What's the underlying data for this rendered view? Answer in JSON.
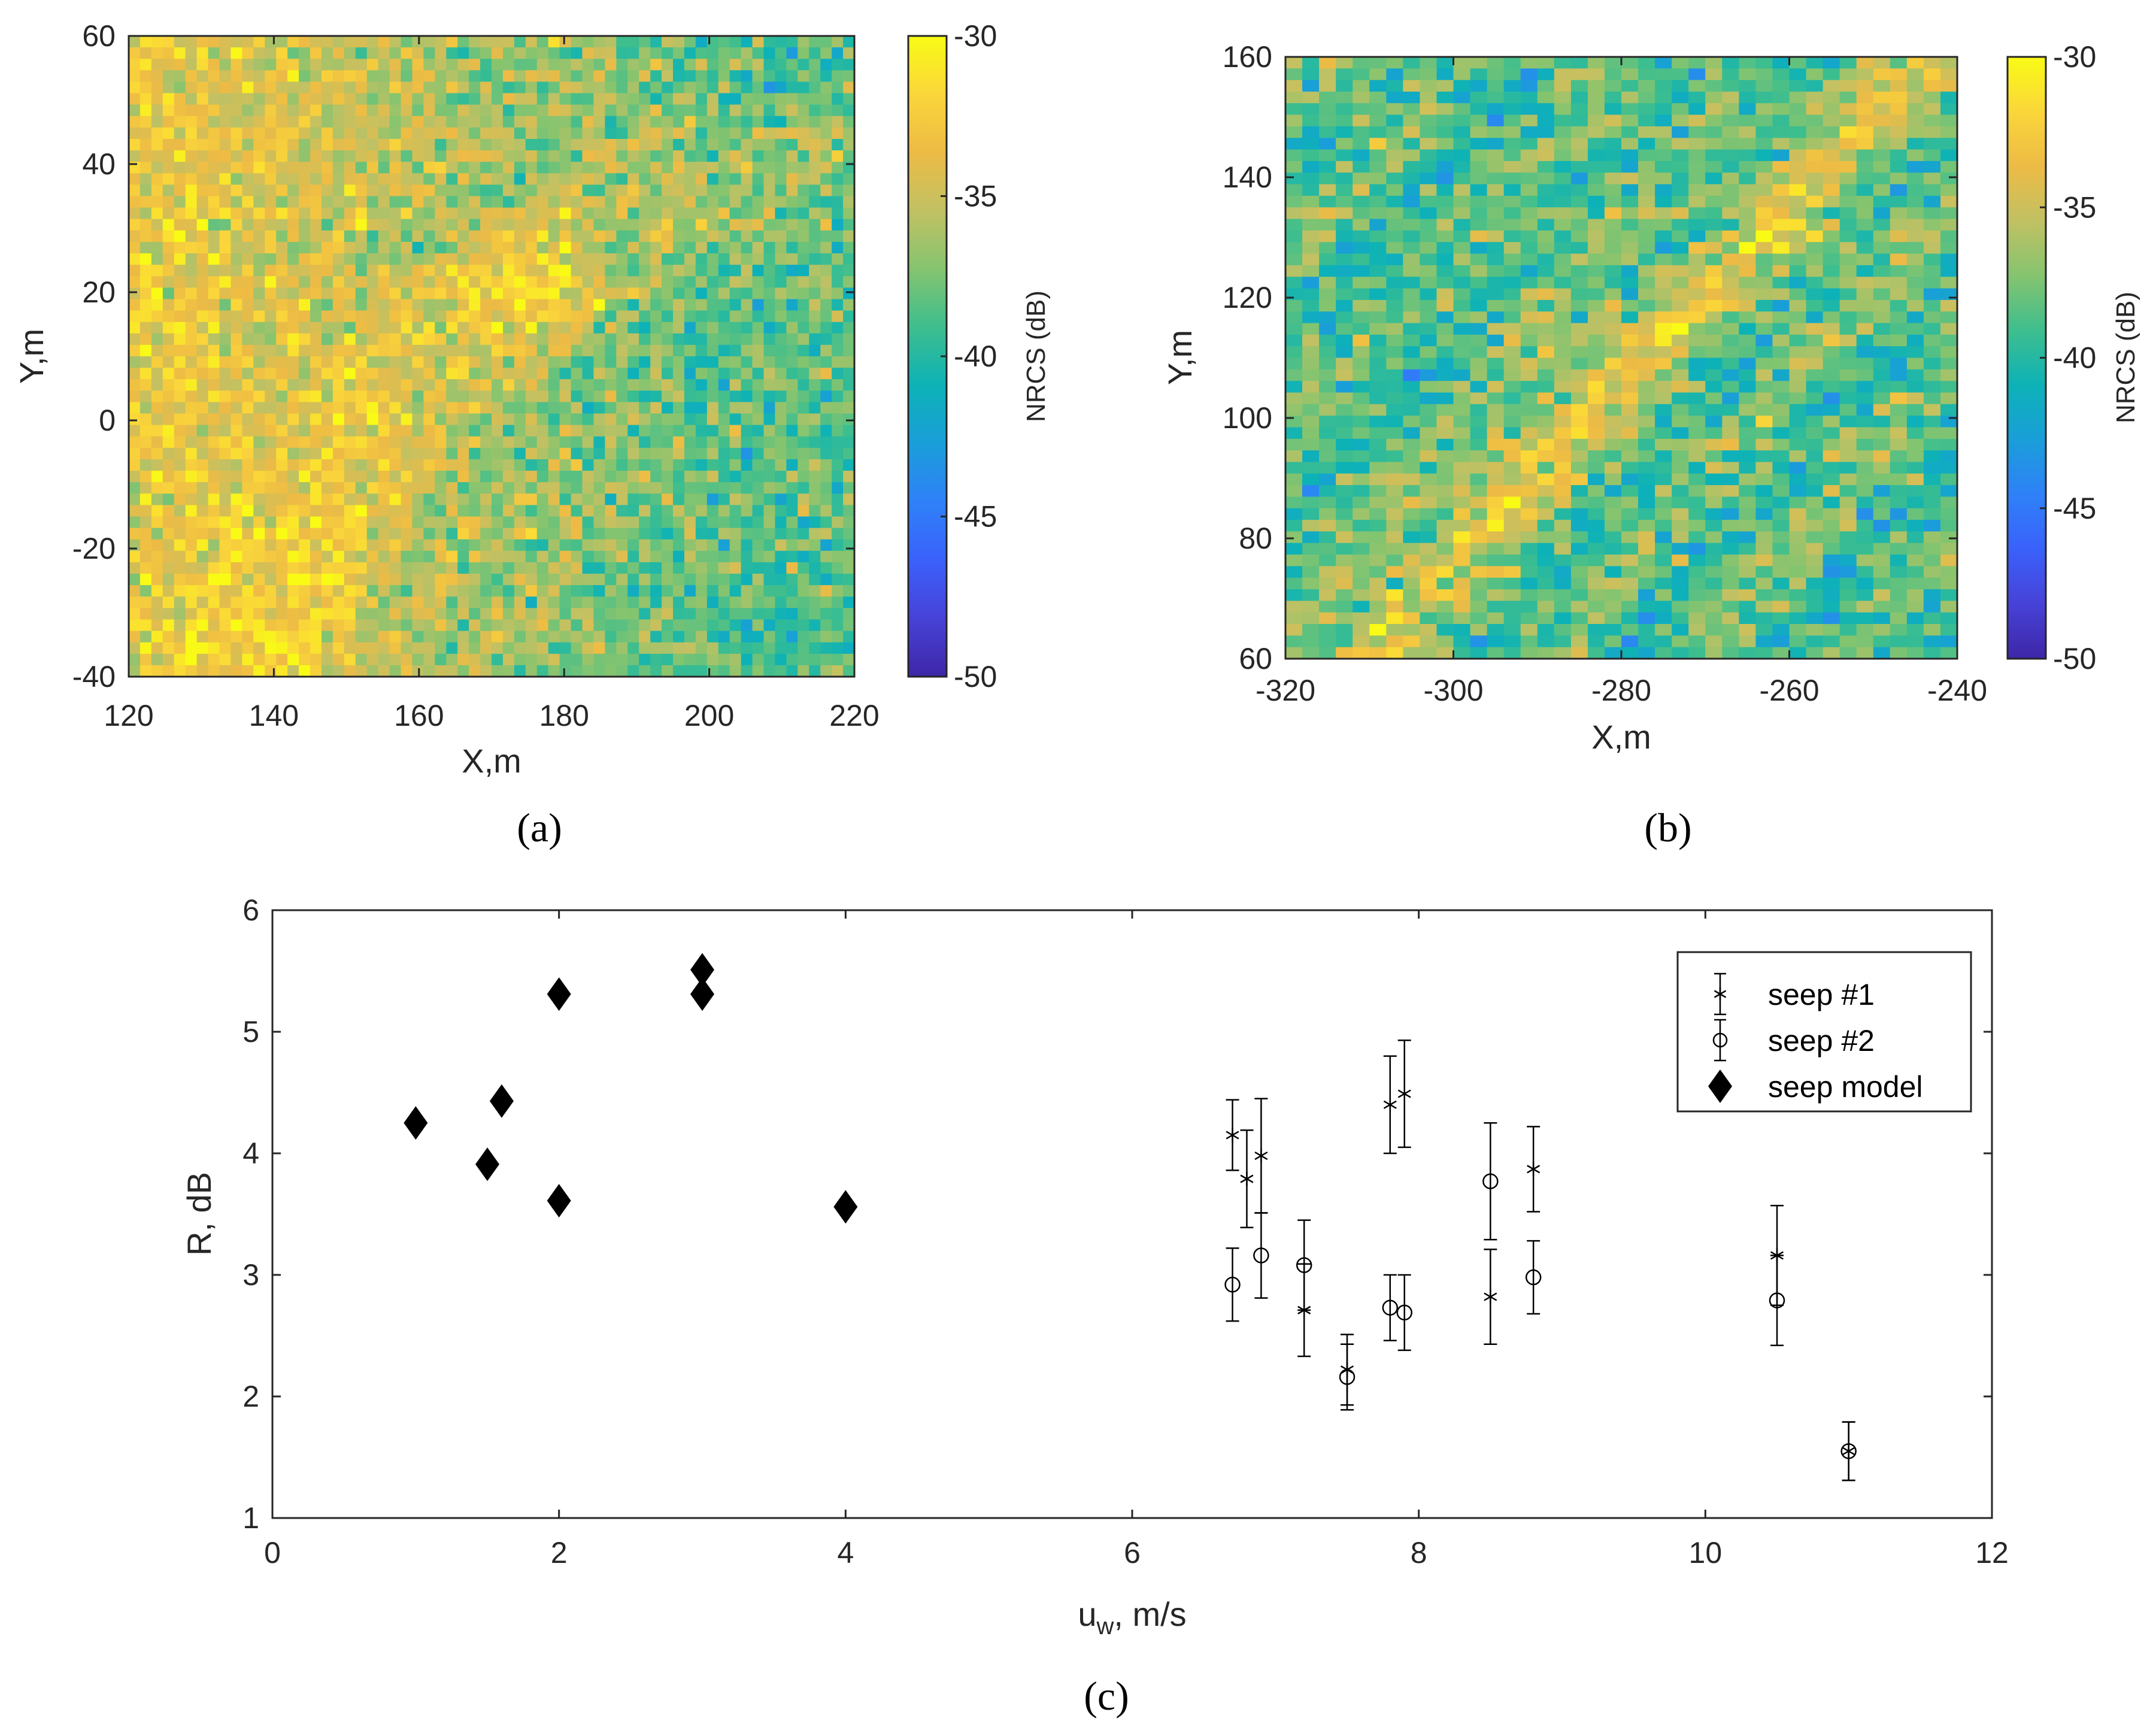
{
  "colors": {
    "cmap": [
      "#3e26a8",
      "#4742d7",
      "#3a61fb",
      "#2f81f8",
      "#1a9ed9",
      "#0db2b7",
      "#3ebe8e",
      "#85c46f",
      "#c1c163",
      "#edbb45",
      "#fad63a",
      "#f9fb15"
    ],
    "axis": "#262626",
    "marker": "#000000"
  },
  "panels": {
    "a": "(a)",
    "b": "(b)",
    "c": "(c)"
  },
  "chart_data": [
    {
      "id": "a",
      "type": "heatmap",
      "title": "",
      "xlabel": "X,m",
      "ylabel": "Y,m",
      "xlim": [
        120,
        220
      ],
      "ylim": [
        -40,
        60
      ],
      "xticks": [
        "120",
        "140",
        "160",
        "180",
        "200",
        "220"
      ],
      "yticks": [
        "60",
        "40",
        "20",
        "0",
        "-20",
        "-40"
      ],
      "colorbar": {
        "label": "NRCS (dB)",
        "range": [
          -50,
          -30
        ],
        "ticks": [
          "-30",
          "-35",
          "-40",
          "-45",
          "-50"
        ]
      },
      "pattern": {
        "grid": [
          64,
          56
        ],
        "base_left_dB": -33.5,
        "base_right_dB": -38.5,
        "noise_dB": 2.4,
        "hotspots": [
          {
            "x": 175,
            "y": 21,
            "r": 12,
            "dB": -31.0
          }
        ]
      }
    },
    {
      "id": "b",
      "type": "heatmap",
      "title": "",
      "xlabel": "X,m",
      "ylabel": "Y,m",
      "xlim": [
        -320,
        -240
      ],
      "ylim": [
        60,
        160
      ],
      "xticks": [
        "-320",
        "-300",
        "-280",
        "-260",
        "-240"
      ],
      "yticks": [
        "160",
        "140",
        "120",
        "100",
        "80",
        "60"
      ],
      "colorbar": {
        "label": "NRCS (dB)",
        "range": [
          -50,
          -30
        ],
        "ticks": [
          "-30",
          "-35",
          "-40",
          "-45",
          "-50"
        ]
      },
      "pattern": {
        "grid": [
          40,
          52
        ],
        "base_dB": -38.5,
        "noise_dB": 2.6,
        "streak_dB": -34.0
      }
    },
    {
      "id": "c",
      "type": "scatter",
      "xlabel": "u",
      "xlabel_sub": "w",
      "xlabel_rest": ", m/s",
      "ylabel": "R, dB",
      "xlim": [
        0,
        12
      ],
      "ylim": [
        1,
        6
      ],
      "xticks": [
        "0",
        "2",
        "4",
        "6",
        "8",
        "10",
        "12"
      ],
      "yticks": [
        "1",
        "2",
        "3",
        "4",
        "5",
        "6"
      ],
      "legend_position": "top-right",
      "series": [
        {
          "name": "seep #1",
          "marker": "asterisk",
          "points": [
            {
              "x": 6.7,
              "y": 4.15,
              "err": 0.29
            },
            {
              "x": 6.8,
              "y": 3.79,
              "err": 0.4
            },
            {
              "x": 6.9,
              "y": 3.98,
              "err": 0.47
            },
            {
              "x": 7.2,
              "y": 2.71,
              "err": 0.38
            },
            {
              "x": 7.5,
              "y": 2.22,
              "err": 0.29
            },
            {
              "x": 7.8,
              "y": 4.4,
              "err": 0.4
            },
            {
              "x": 7.9,
              "y": 4.49,
              "err": 0.44
            },
            {
              "x": 8.5,
              "y": 2.82,
              "err": 0.39
            },
            {
              "x": 8.8,
              "y": 3.87,
              "err": 0.35
            },
            {
              "x": 10.5,
              "y": 3.16,
              "err": 0.41
            },
            {
              "x": 11.0,
              "y": 1.55,
              "err": 0.24
            }
          ]
        },
        {
          "name": "seep #2",
          "marker": "circle",
          "points": [
            {
              "x": 6.7,
              "y": 2.92,
              "err": 0.3
            },
            {
              "x": 6.9,
              "y": 3.16,
              "err": 0.35
            },
            {
              "x": 7.2,
              "y": 3.08,
              "err": 0.37
            },
            {
              "x": 7.5,
              "y": 2.16,
              "err": 0.27
            },
            {
              "x": 7.8,
              "y": 2.73,
              "err": 0.27
            },
            {
              "x": 7.9,
              "y": 2.69,
              "err": 0.31
            },
            {
              "x": 8.5,
              "y": 3.77,
              "err": 0.48
            },
            {
              "x": 8.8,
              "y": 2.98,
              "err": 0.3
            },
            {
              "x": 10.5,
              "y": 2.79,
              "err": 0.37
            },
            {
              "x": 11.0,
              "y": 1.55,
              "err": 0.24
            }
          ]
        },
        {
          "name": "seep model",
          "marker": "diamond",
          "points": [
            {
              "x": 1.0,
              "y": 4.25
            },
            {
              "x": 1.5,
              "y": 3.91
            },
            {
              "x": 1.6,
              "y": 4.43
            },
            {
              "x": 2.0,
              "y": 5.31
            },
            {
              "x": 2.0,
              "y": 3.61
            },
            {
              "x": 3.0,
              "y": 5.51
            },
            {
              "x": 3.0,
              "y": 5.31
            },
            {
              "x": 4.0,
              "y": 3.56
            }
          ]
        }
      ]
    }
  ]
}
